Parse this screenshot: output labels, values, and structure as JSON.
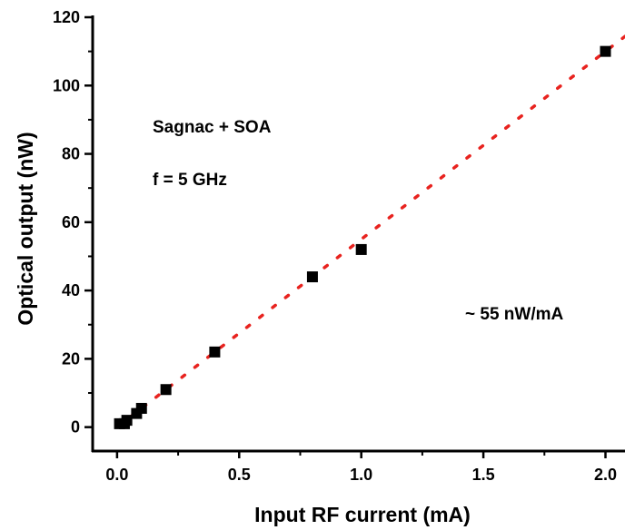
{
  "chart_data": {
    "type": "scatter",
    "xlabel": "Input RF current (mA)",
    "ylabel": "Optical output (nW)",
    "xlim": [
      -0.1,
      2.08
    ],
    "ylim": [
      -7,
      120
    ],
    "xticks": [
      0.0,
      0.5,
      1.0,
      1.5,
      2.0
    ],
    "xtick_labels": [
      "0.0",
      "0.5",
      "1.0",
      "1.5",
      "2.0"
    ],
    "yticks": [
      0,
      20,
      40,
      60,
      80,
      100,
      120
    ],
    "ytick_labels": [
      "0",
      "20",
      "40",
      "60",
      "80",
      "100",
      "120"
    ],
    "grid": false,
    "series": [
      {
        "marker": "square",
        "color": "#000000",
        "x": [
          0.01,
          0.03,
          0.04,
          0.08,
          0.1,
          0.2,
          0.4,
          0.8,
          1.0,
          2.0
        ],
        "y": [
          1,
          1,
          2,
          4,
          5.5,
          11,
          22,
          44,
          52,
          110
        ]
      }
    ],
    "fit_line": {
      "style": "dotted",
      "color": "#e8231f",
      "slope": 55,
      "intercept": 0
    },
    "annotations": [
      "Sagnac + SOA",
      "f = 5 GHz",
      "~ 55 nW/mA"
    ]
  }
}
